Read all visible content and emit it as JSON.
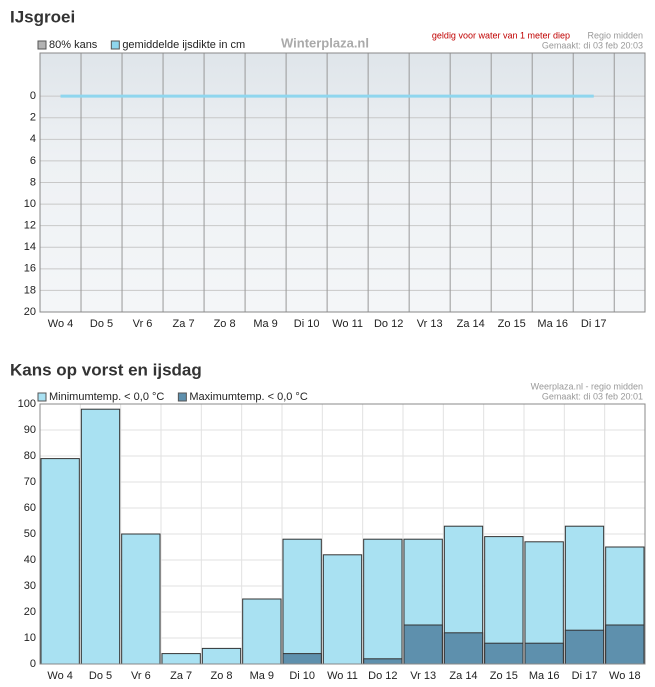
{
  "chart_data": [
    {
      "type": "line",
      "title": "IJsgroei",
      "annotations": [
        "Winterplaza.nl",
        "geldig voor water van 1 meter diep",
        "Regio midden",
        "Gemaakt: di 03 feb 20:03"
      ],
      "categories": [
        "Wo 4",
        "Do 5",
        "Vr 6",
        "Za 7",
        "Zo 8",
        "Ma 9",
        "Di 10",
        "Wo 11",
        "Do 12",
        "Vr 13",
        "Za 14",
        "Zo 15",
        "Ma 16",
        "Di 17"
      ],
      "series": [
        {
          "name": "80% kans",
          "color": "#b3b3b3",
          "values": [
            0,
            0,
            0,
            0,
            0,
            0,
            0,
            0,
            0,
            0,
            0,
            0,
            0,
            0
          ]
        },
        {
          "name": "gemiddelde ijsdikte in cm",
          "color": "#8fd6ee",
          "values": [
            0,
            0,
            0,
            0,
            0,
            0,
            0,
            0,
            0,
            0,
            0,
            0,
            0,
            0
          ]
        }
      ],
      "ylim": [
        -4,
        20
      ],
      "y_inverted": true,
      "yticks": [
        0,
        2,
        4,
        6,
        8,
        10,
        12,
        14,
        16,
        18,
        20
      ],
      "grid": true
    },
    {
      "type": "bar",
      "title": "Kans op vorst en ijsdag",
      "annotations": [
        "Weerplaza.nl - regio midden",
        "Gemaakt: di 03 feb 20:01"
      ],
      "categories": [
        "Wo 4",
        "Do 5",
        "Vr 6",
        "Za 7",
        "Zo 8",
        "Ma 9",
        "Di 10",
        "Wo 11",
        "Do 12",
        "Vr 13",
        "Za 14",
        "Zo 15",
        "Ma 16",
        "Di 17",
        "Wo 18"
      ],
      "series": [
        {
          "name": "Minimumtemp. < 0,0 °C",
          "color": "#a9e1f2",
          "values": [
            79,
            98,
            50,
            4,
            6,
            25,
            48,
            42,
            48,
            48,
            53,
            49,
            47,
            53,
            45
          ]
        },
        {
          "name": "Maximumtemp. < 0,0 °C",
          "color": "#5e90ad",
          "values": [
            0,
            0,
            0,
            0,
            0,
            0,
            4,
            0,
            2,
            15,
            12,
            8,
            8,
            13,
            15
          ]
        }
      ],
      "ylim": [
        0,
        100
      ],
      "yticks": [
        0,
        10,
        20,
        30,
        40,
        50,
        60,
        70,
        80,
        90,
        100
      ],
      "grid": true
    }
  ]
}
